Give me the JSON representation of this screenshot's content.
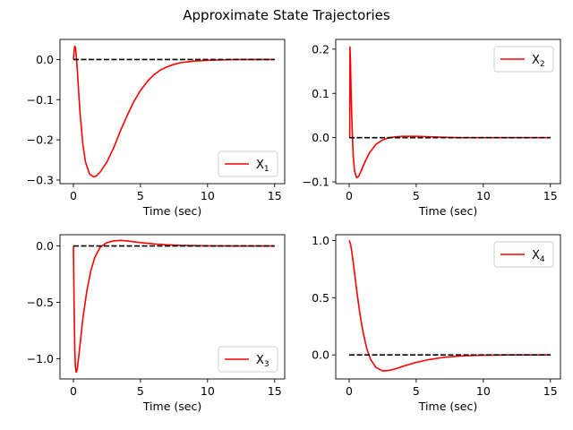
{
  "figure_title": "Approximate State Trajectories",
  "colors": {
    "trajectory": "#ff0000",
    "zero_line": "#000000"
  },
  "chart_data": [
    {
      "type": "line",
      "xlabel": "Time (sec)",
      "xlim": [
        -1,
        15.75
      ],
      "ylim": [
        -0.309,
        0.05
      ],
      "xticks": [
        0,
        5,
        10,
        15
      ],
      "yticks": [
        0.0,
        -0.1,
        -0.2,
        -0.3
      ],
      "ytick_labels": [
        "0.0",
        "−0.1",
        "−0.2",
        "−0.3"
      ],
      "legend": {
        "base": "X",
        "sub": "1",
        "position": "lower-right"
      },
      "series": [
        {
          "x": [
            0,
            0.05,
            0.1,
            0.15,
            0.2,
            0.3,
            0.4,
            0.5,
            0.7,
            0.9,
            1.2,
            1.5,
            1.7,
            2.0,
            2.5,
            3.0,
            3.5,
            4.0,
            4.5,
            5.0,
            5.5,
            6.0,
            6.5,
            7.0,
            7.5,
            8.0,
            9.0,
            10.0,
            11.0,
            12.0,
            13.0,
            15.0
          ],
          "y": [
            0.0,
            0.02,
            0.033,
            0.03,
            0.015,
            -0.03,
            -0.085,
            -0.135,
            -0.21,
            -0.255,
            -0.285,
            -0.292,
            -0.29,
            -0.28,
            -0.255,
            -0.22,
            -0.178,
            -0.14,
            -0.105,
            -0.077,
            -0.055,
            -0.038,
            -0.026,
            -0.018,
            -0.012,
            -0.008,
            -0.004,
            -0.002,
            -0.001,
            0.0,
            0.0,
            0.0
          ]
        },
        {
          "x": [
            0,
            15
          ],
          "y": [
            0,
            0
          ]
        }
      ]
    },
    {
      "type": "line",
      "xlabel": "Time (sec)",
      "xlim": [
        -1,
        15.75
      ],
      "ylim": [
        -0.104,
        0.222
      ],
      "xticks": [
        0,
        5,
        10,
        15
      ],
      "yticks": [
        0.2,
        0.1,
        0.0,
        -0.1
      ],
      "ytick_labels": [
        "0.2",
        "0.1",
        "0.0",
        "−0.1"
      ],
      "legend": {
        "base": "X",
        "sub": "2",
        "position": "top-right"
      },
      "series": [
        {
          "x": [
            0,
            0.04,
            0.06,
            0.1,
            0.14,
            0.2,
            0.3,
            0.4,
            0.55,
            0.7,
            0.9,
            1.1,
            1.5,
            2.0,
            2.5,
            3.0,
            3.5,
            4.0,
            5.0,
            6.0,
            7.0,
            8.0,
            10.0,
            12.0,
            15.0
          ],
          "y": [
            0.0,
            0.0,
            0.205,
            0.17,
            0.11,
            0.04,
            -0.04,
            -0.075,
            -0.09,
            -0.088,
            -0.075,
            -0.06,
            -0.035,
            -0.015,
            -0.005,
            0.0,
            0.002,
            0.003,
            0.003,
            0.002,
            0.001,
            0.0,
            0.0,
            0.0,
            0.0
          ]
        },
        {
          "x": [
            0,
            15
          ],
          "y": [
            0,
            0
          ]
        }
      ]
    },
    {
      "type": "line",
      "xlabel": "Time (sec)",
      "xlim": [
        -1,
        15.75
      ],
      "ylim": [
        -1.18,
        0.1
      ],
      "xticks": [
        0,
        5,
        10,
        15
      ],
      "yticks": [
        0.0,
        -0.5,
        -1.0
      ],
      "ytick_labels": [
        "0.0",
        "−0.5",
        "−1.0"
      ],
      "legend": {
        "base": "X",
        "sub": "3",
        "position": "lower-right"
      },
      "series": [
        {
          "x": [
            0,
            0.05,
            0.1,
            0.15,
            0.2,
            0.25,
            0.3,
            0.4,
            0.5,
            0.7,
            1.0,
            1.3,
            1.6,
            2.0,
            2.5,
            3.0,
            3.5,
            4.0,
            5.0,
            6.0,
            7.0,
            8.0,
            10.0,
            12.0,
            15.0
          ],
          "y": [
            0.0,
            -0.5,
            -0.9,
            -1.07,
            -1.12,
            -1.11,
            -1.08,
            -0.98,
            -0.87,
            -0.65,
            -0.4,
            -0.22,
            -0.1,
            -0.01,
            0.03,
            0.045,
            0.05,
            0.045,
            0.03,
            0.018,
            0.01,
            0.005,
            0.001,
            0.0,
            0.0
          ]
        },
        {
          "x": [
            0,
            15
          ],
          "y": [
            0,
            0
          ]
        }
      ]
    },
    {
      "type": "line",
      "xlabel": "Time (sec)",
      "xlim": [
        -1,
        15.75
      ],
      "ylim": [
        -0.21,
        1.05
      ],
      "xticks": [
        0,
        5,
        10,
        15
      ],
      "yticks": [
        1.0,
        0.5,
        0.0
      ],
      "ytick_labels": [
        "1.0",
        "0.5",
        "0.0"
      ],
      "legend": {
        "base": "X",
        "sub": "4",
        "position": "top-right"
      },
      "series": [
        {
          "x": [
            0,
            0.1,
            0.2,
            0.4,
            0.6,
            0.8,
            1.0,
            1.3,
            1.6,
            2.0,
            2.5,
            3.0,
            3.5,
            4.0,
            5.0,
            6.0,
            7.0,
            8.0,
            9.0,
            10.0,
            12.0,
            15.0
          ],
          "y": [
            1.0,
            0.97,
            0.9,
            0.72,
            0.53,
            0.36,
            0.22,
            0.06,
            -0.04,
            -0.11,
            -0.14,
            -0.135,
            -0.12,
            -0.1,
            -0.065,
            -0.04,
            -0.022,
            -0.012,
            -0.006,
            -0.003,
            0.0,
            0.0
          ]
        },
        {
          "x": [
            0,
            15
          ],
          "y": [
            0,
            0
          ]
        }
      ]
    }
  ]
}
